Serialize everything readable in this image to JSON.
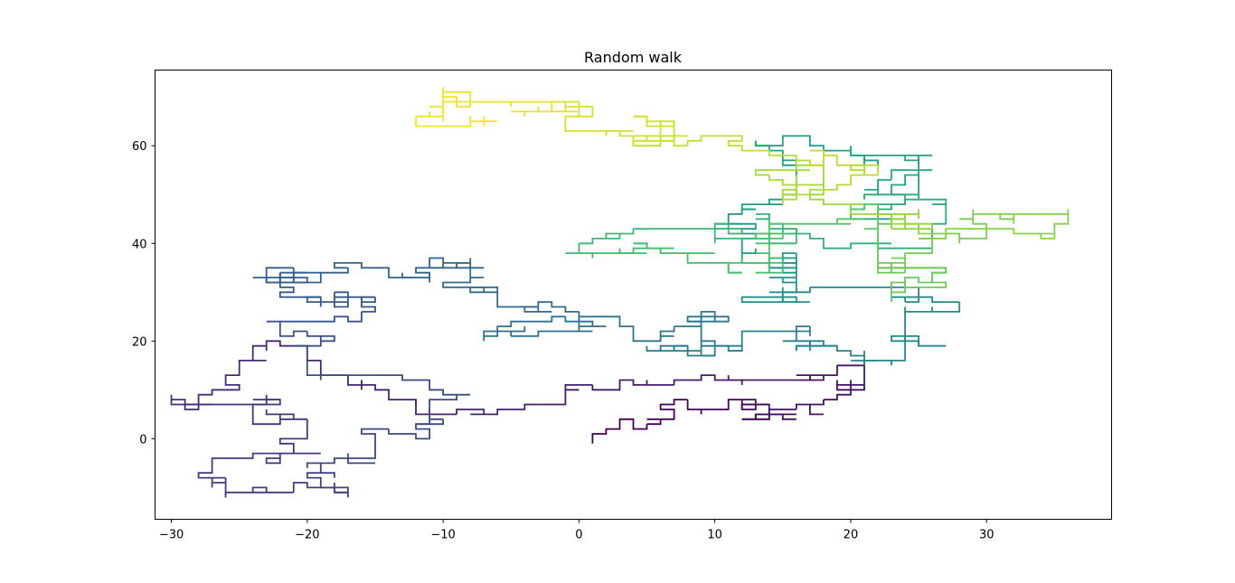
{
  "chart_data": {
    "type": "line",
    "title": "Random walk",
    "xlabel": "",
    "ylabel": "",
    "xlim": [
      -31.2,
      39.2
    ],
    "ylim": [
      -16.5,
      75.5
    ],
    "xticks": [
      -30,
      -20,
      -10,
      0,
      10,
      20,
      30
    ],
    "yticks": [
      0,
      20,
      40,
      60
    ],
    "xtick_labels": [
      "−30",
      "−20",
      "−10",
      "0",
      "10",
      "20",
      "30"
    ],
    "ytick_labels": [
      "0",
      "20",
      "40",
      "60"
    ],
    "grid": false,
    "legend": "none",
    "colormap": "viridis",
    "colormap_stops": [
      "#440154",
      "#46327e",
      "#365c8d",
      "#277f8e",
      "#1fa187",
      "#4ac16d",
      "#a0da39",
      "#fde725"
    ],
    "seed": 19680801,
    "waypoints": [
      [
        1,
        -1
      ],
      [
        3,
        3
      ],
      [
        7,
        8
      ],
      [
        12,
        6
      ],
      [
        17,
        5
      ],
      [
        21,
        16
      ],
      [
        13,
        12
      ],
      [
        4,
        12
      ],
      [
        -2,
        7
      ],
      [
        -8,
        5
      ],
      [
        -14,
        8
      ],
      [
        -19,
        15
      ],
      [
        -23,
        19
      ],
      [
        -25,
        7
      ],
      [
        -20,
        2
      ],
      [
        -24,
        -3
      ],
      [
        -27,
        -7
      ],
      [
        -21,
        -11
      ],
      [
        -18,
        -9
      ],
      [
        -15,
        1
      ],
      [
        -10,
        4
      ],
      [
        -11,
        12
      ],
      [
        -18,
        13
      ],
      [
        -20,
        24
      ],
      [
        -15,
        28
      ],
      [
        -21,
        30
      ],
      [
        -14,
        34
      ],
      [
        -8,
        37
      ],
      [
        -6,
        29
      ],
      [
        -1,
        27
      ],
      [
        0,
        24
      ],
      [
        -7,
        22
      ],
      [
        3,
        25
      ],
      [
        7,
        21
      ],
      [
        11,
        25
      ],
      [
        5,
        18
      ],
      [
        12,
        19
      ],
      [
        17,
        22
      ],
      [
        21,
        16
      ],
      [
        24,
        21
      ],
      [
        27,
        19
      ],
      [
        24,
        29
      ],
      [
        17,
        31
      ],
      [
        12,
        28
      ],
      [
        16,
        37
      ],
      [
        12,
        44
      ],
      [
        16,
        53
      ],
      [
        13,
        60
      ],
      [
        17,
        62
      ],
      [
        22,
        56
      ],
      [
        26,
        58
      ],
      [
        25,
        50
      ],
      [
        20,
        46
      ],
      [
        27,
        48
      ],
      [
        26,
        39
      ],
      [
        20,
        39
      ],
      [
        14,
        46
      ],
      [
        16,
        40
      ],
      [
        10,
        42
      ],
      [
        5,
        43
      ],
      [
        9,
        38
      ],
      [
        14,
        45
      ],
      [
        19,
        44
      ],
      [
        22,
        40
      ],
      [
        27,
        35
      ],
      [
        23,
        32
      ],
      [
        26,
        40
      ],
      [
        29,
        46
      ],
      [
        34,
        46
      ],
      [
        36,
        45
      ],
      [
        32,
        42
      ],
      [
        26,
        43
      ],
      [
        21,
        48
      ],
      [
        18,
        56
      ],
      [
        13,
        55
      ],
      [
        17,
        50
      ],
      [
        21,
        56
      ],
      [
        16,
        58
      ],
      [
        11,
        61
      ],
      [
        7,
        62
      ],
      [
        5,
        65
      ],
      [
        2,
        63
      ],
      [
        1,
        67
      ],
      [
        -2,
        69
      ],
      [
        -5,
        67
      ],
      [
        -8,
        69
      ],
      [
        -10,
        66
      ],
      [
        -7,
        64
      ]
    ]
  }
}
